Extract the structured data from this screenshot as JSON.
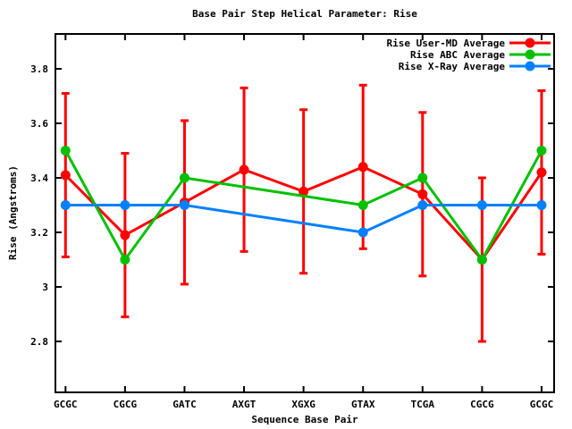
{
  "chart_data": {
    "type": "line",
    "title": "Base Pair Step Helical Parameter: Rise",
    "xlabel": "Sequence Base Pair",
    "ylabel": "Rise (Angstroms)",
    "categories": [
      "GCGC",
      "CGCG",
      "GATC",
      "AXGT",
      "XGXG",
      "GTAX",
      "TCGA",
      "CGCG",
      "GCGC"
    ],
    "ytick_labels": [
      "2.8",
      "3",
      "3.2",
      "3.4",
      "3.6",
      "3.8"
    ],
    "yticks": [
      2.8,
      3.0,
      3.2,
      3.4,
      3.6,
      3.8
    ],
    "ylim": [
      2.61,
      3.93
    ],
    "grid": false,
    "legend_position": "top-right-inside",
    "marker": "filled-circle",
    "series": [
      {
        "name": "Rise User-MD Average",
        "color": "#ff0000",
        "values": [
          3.41,
          3.19,
          3.31,
          3.43,
          3.35,
          3.44,
          3.34,
          3.1,
          3.42
        ],
        "yerr": [
          0.3,
          0.3,
          0.3,
          0.3,
          0.3,
          0.3,
          0.3,
          0.3,
          0.3
        ]
      },
      {
        "name": "Rise ABC Average",
        "color": "#00c000",
        "values": [
          3.5,
          3.1,
          3.4,
          null,
          null,
          3.3,
          3.4,
          3.1,
          3.5
        ],
        "yerr": null
      },
      {
        "name": "Rise X-Ray Average",
        "color": "#0080ff",
        "values": [
          3.3,
          3.3,
          3.3,
          null,
          null,
          3.2,
          3.3,
          3.3,
          3.3
        ],
        "yerr": null
      }
    ]
  }
}
